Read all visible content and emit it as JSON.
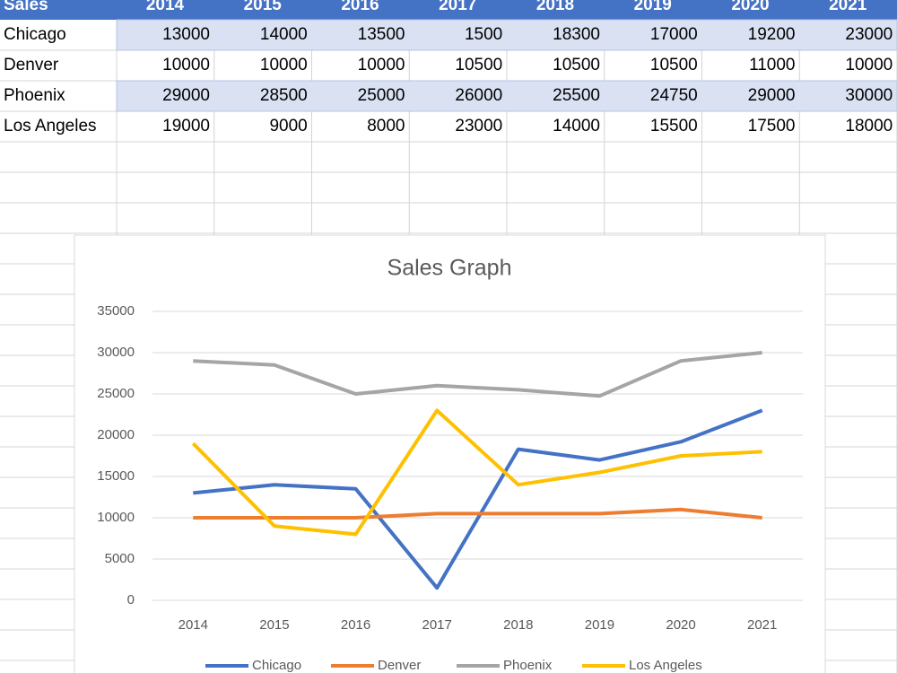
{
  "table": {
    "header": [
      "Sales",
      "2014",
      "2015",
      "2016",
      "2017",
      "2018",
      "2019",
      "2020",
      "2021"
    ],
    "rows": [
      [
        "Chicago",
        13000,
        14000,
        13500,
        1500,
        18300,
        17000,
        19200,
        23000
      ],
      [
        "Denver",
        10000,
        10000,
        10000,
        10500,
        10500,
        10500,
        11000,
        10000
      ],
      [
        "Phoenix",
        29000,
        28500,
        25000,
        26000,
        25500,
        24750,
        29000,
        30000
      ],
      [
        "Los Angeles",
        19000,
        9000,
        8000,
        23000,
        14000,
        15500,
        17500,
        18000
      ]
    ]
  },
  "chart_data": {
    "type": "line",
    "title": "Sales Graph",
    "categories": [
      "2014",
      "2015",
      "2016",
      "2017",
      "2018",
      "2019",
      "2020",
      "2021"
    ],
    "series": [
      {
        "name": "Chicago",
        "color": "#4472c4",
        "values": [
          13000,
          14000,
          13500,
          1500,
          18300,
          17000,
          19200,
          23000
        ]
      },
      {
        "name": "Denver",
        "color": "#ed7d31",
        "values": [
          10000,
          10000,
          10000,
          10500,
          10500,
          10500,
          11000,
          10000
        ]
      },
      {
        "name": "Phoenix",
        "color": "#a5a5a5",
        "values": [
          29000,
          28500,
          25000,
          26000,
          25500,
          24750,
          29000,
          30000
        ]
      },
      {
        "name": "Los Angeles",
        "color": "#ffc000",
        "values": [
          19000,
          9000,
          8000,
          23000,
          14000,
          15500,
          17500,
          18000
        ]
      }
    ],
    "ylim": [
      0,
      35000
    ],
    "yticks": [
      0,
      5000,
      10000,
      15000,
      20000,
      25000,
      30000,
      35000
    ],
    "grid": true,
    "legend": "bottom"
  }
}
